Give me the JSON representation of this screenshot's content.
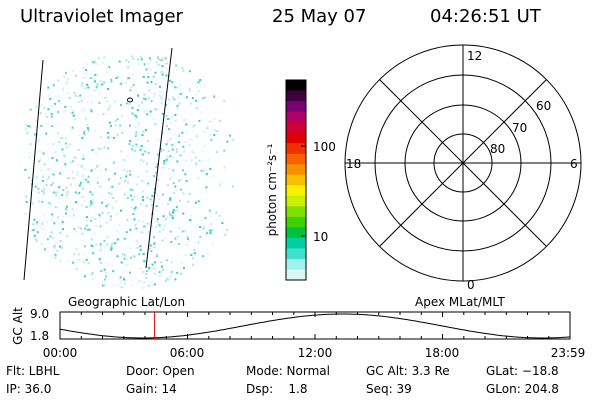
{
  "header": {
    "instrument": "Ultraviolet Imager",
    "date": "25 May 07",
    "time": "04:26:51 UT"
  },
  "colorbar": {
    "ylabel": "photon cm⁻²s⁻¹",
    "tick_labels": [
      "100",
      "10"
    ],
    "colors": [
      "#000000",
      "#400040",
      "#7a0070",
      "#b0006a",
      "#d0003a",
      "#e00000",
      "#f03000",
      "#f86000",
      "#f89000",
      "#f8c000",
      "#f8f000",
      "#c8f000",
      "#80e000",
      "#40d000",
      "#00c040",
      "#00d0a0",
      "#40e0d0",
      "#a0f0f0",
      "#d8f8f8"
    ]
  },
  "polar_grid": {
    "mlt_labels": [
      "12",
      "18",
      "6",
      "0"
    ],
    "mlat_labels": [
      "60",
      "70",
      "80"
    ]
  },
  "timeline": {
    "ylabel": "GC Alt",
    "ytick_labels": [
      "9.0",
      "1.8"
    ],
    "left_caption": "Geographic Lat/Lon",
    "right_caption": "Apex MLat/MLT",
    "xtick_labels": [
      "00:00",
      "06:00",
      "12:00",
      "18:00",
      "23:59"
    ],
    "current_time_hours": 4.45,
    "marker_color": "#e00000"
  },
  "status": {
    "flt": "Flt: LBHL",
    "door": "Door: Open",
    "mode": "Mode: Normal",
    "gc_alt": "GC Alt: 3.3 Re",
    "glat": "GLat: −18.8",
    "ip": "IP: 36.0",
    "gain": "Gain: 14",
    "dsp": "Dsp:    1.8",
    "seq": "Seq: 39",
    "glon": "GLon: 204.8"
  }
}
